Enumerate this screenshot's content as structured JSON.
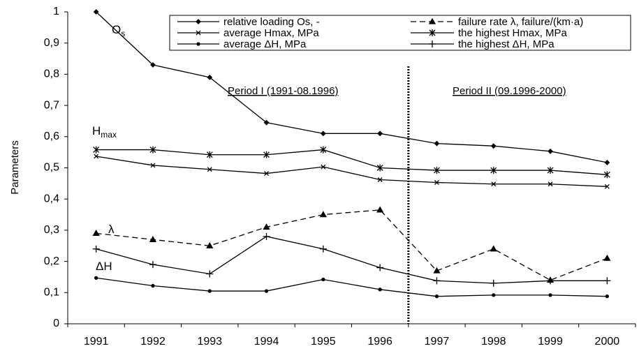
{
  "chart_data": {
    "type": "line",
    "y_label": "Parameters",
    "categories": [
      "1991",
      "1992",
      "1993",
      "1994",
      "1995",
      "1996",
      "1997",
      "1998",
      "1999",
      "2000"
    ],
    "ylim": [
      0,
      1
    ],
    "yticks": [
      0,
      {
        "value": 0.1,
        "label": "0,1"
      },
      {
        "value": 0.2,
        "label": "0,2"
      },
      {
        "value": 0.3,
        "label": "0,3"
      },
      {
        "value": 0.4,
        "label": "0,4"
      },
      {
        "value": 0.5,
        "label": "0,5"
      },
      {
        "value": 0.6,
        "label": "0,6"
      },
      {
        "value": 0.7,
        "label": "0,7"
      },
      {
        "value": 0.8,
        "label": "0,8"
      },
      {
        "value": 0.9,
        "label": "0,9"
      },
      1
    ],
    "grid": false,
    "legend": "top-right",
    "series": [
      {
        "name": "relative loading Os, -",
        "color": "#000000",
        "marker": "diamond",
        "line_style": "solid",
        "values": [
          1.0,
          0.83,
          0.79,
          0.645,
          0.61,
          0.61,
          0.578,
          0.57,
          0.553,
          0.517
        ]
      },
      {
        "name": "failure rate λ, failure/(km·a)",
        "color": "#000000",
        "marker": "triangle",
        "line_style": "dashed",
        "values": [
          0.29,
          0.27,
          0.25,
          0.31,
          0.35,
          0.365,
          0.17,
          0.24,
          0.14,
          0.21
        ]
      },
      {
        "name": "average Hmax, MPa",
        "color": "#000000",
        "marker": "x",
        "line_style": "solid",
        "values": [
          0.537,
          0.508,
          0.495,
          0.482,
          0.503,
          0.462,
          0.453,
          0.448,
          0.448,
          0.44
        ]
      },
      {
        "name": "the highest Hmax, MPa",
        "color": "#000000",
        "marker": "asterisk",
        "line_style": "solid",
        "values": [
          0.558,
          0.558,
          0.542,
          0.542,
          0.558,
          0.5,
          0.492,
          0.492,
          0.492,
          0.478
        ]
      },
      {
        "name": "average ΔH, MPa",
        "color": "#000000",
        "marker": "dot",
        "line_style": "solid",
        "values": [
          0.147,
          0.122,
          0.105,
          0.105,
          0.142,
          0.11,
          0.088,
          0.092,
          0.092,
          0.088
        ]
      },
      {
        "name": "the highest ΔH, MPa",
        "color": "#000000",
        "marker": "plus",
        "line_style": "solid",
        "values": [
          0.24,
          0.19,
          0.16,
          0.28,
          0.24,
          0.18,
          0.138,
          0.13,
          0.138,
          0.138
        ]
      }
    ],
    "annotations": [
      {
        "text": "O",
        "subscript": "s"
      },
      {
        "text": "H",
        "subscript": "max"
      },
      {
        "text": "λ"
      },
      {
        "text": "ΔH"
      },
      {
        "text": "Period I (1991-08.1996)"
      },
      {
        "text": "Period II (09.1996-2000)"
      }
    ]
  }
}
